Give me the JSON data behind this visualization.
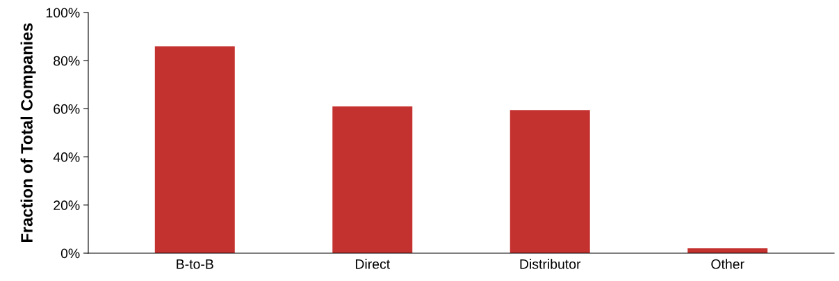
{
  "chart_data": {
    "type": "bar",
    "ylabel": "Fraction of Total Companies",
    "categories": [
      "B-to-B",
      "Direct",
      "Distributor",
      "Other"
    ],
    "values": [
      86,
      61,
      59.5,
      2
    ],
    "color": "#c43230",
    "ylim": [
      0,
      100
    ],
    "yticks": [
      {
        "value": 0,
        "label": "0%"
      },
      {
        "value": 20,
        "label": "20%"
      },
      {
        "value": 40,
        "label": "40%"
      },
      {
        "value": 60,
        "label": "60%"
      },
      {
        "value": 80,
        "label": "80%"
      },
      {
        "value": 100,
        "label": "100%"
      }
    ],
    "grid": false,
    "legend": false
  }
}
